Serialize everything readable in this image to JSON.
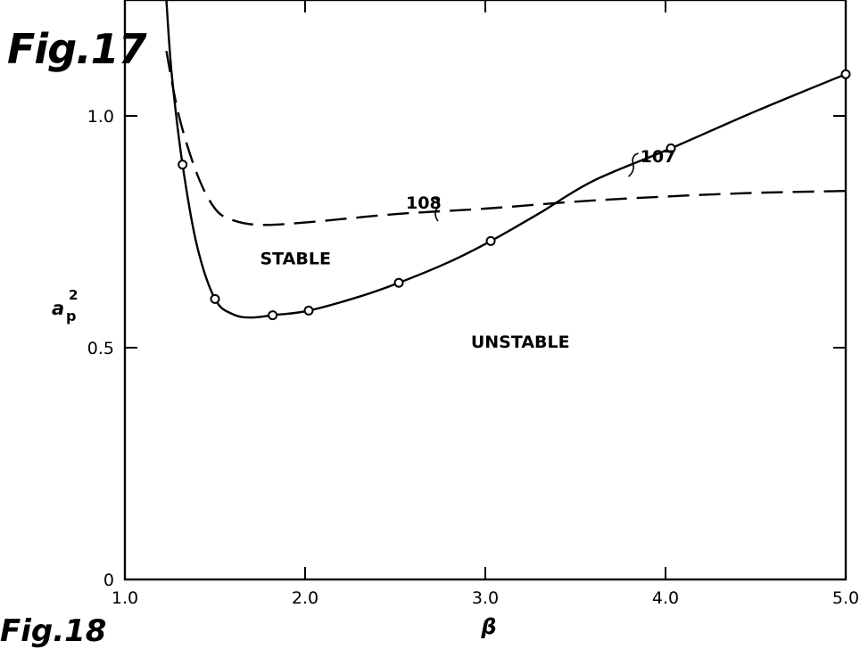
{
  "figure": {
    "title": "Fig.17",
    "next_title": "Fig.18"
  },
  "chart_data": {
    "type": "line",
    "xlabel": "β",
    "ylabel_main": "a",
    "ylabel_sup": "2",
    "ylabel_sub": "p",
    "xlim": [
      1.0,
      5.0
    ],
    "ylim": [
      0,
      1.25
    ],
    "x_ticks": [
      {
        "value": 1.0,
        "label": "1.0"
      },
      {
        "value": 2.0,
        "label": "2.0"
      },
      {
        "value": 3.0,
        "label": "3.0"
      },
      {
        "value": 4.0,
        "label": "4.0"
      },
      {
        "value": 5.0,
        "label": "5.0"
      }
    ],
    "y_ticks": [
      {
        "value": 0,
        "label": "0"
      },
      {
        "value": 0.5,
        "label": "0.5"
      },
      {
        "value": 1.0,
        "label": "1.0"
      }
    ],
    "grid": false,
    "series": [
      {
        "name": "107",
        "style": "solid",
        "color": "#000000",
        "markers": true,
        "points": [
          {
            "x": 1.32,
            "y": 0.895
          },
          {
            "x": 1.5,
            "y": 0.605
          },
          {
            "x": 1.82,
            "y": 0.57
          },
          {
            "x": 2.02,
            "y": 0.58
          },
          {
            "x": 2.52,
            "y": 0.64
          },
          {
            "x": 3.03,
            "y": 0.73
          },
          {
            "x": 4.03,
            "y": 0.93
          },
          {
            "x": 5.0,
            "y": 1.09
          }
        ],
        "curve": [
          [
            1.23,
            1.25
          ],
          [
            1.26,
            1.09
          ],
          [
            1.32,
            0.895
          ],
          [
            1.4,
            0.72
          ],
          [
            1.5,
            0.605
          ],
          [
            1.6,
            0.572
          ],
          [
            1.7,
            0.565
          ],
          [
            1.82,
            0.57
          ],
          [
            2.02,
            0.58
          ],
          [
            2.3,
            0.61
          ],
          [
            2.52,
            0.64
          ],
          [
            2.8,
            0.685
          ],
          [
            3.03,
            0.73
          ],
          [
            3.3,
            0.79
          ],
          [
            3.6,
            0.86
          ],
          [
            4.03,
            0.93
          ],
          [
            4.5,
            1.01
          ],
          [
            5.0,
            1.09
          ]
        ]
      },
      {
        "name": "108",
        "style": "dashed",
        "color": "#000000",
        "markers": false,
        "curve": [
          [
            1.23,
            1.14
          ],
          [
            1.3,
            1.0
          ],
          [
            1.4,
            0.875
          ],
          [
            1.5,
            0.8
          ],
          [
            1.6,
            0.775
          ],
          [
            1.75,
            0.765
          ],
          [
            2.0,
            0.77
          ],
          [
            2.5,
            0.788
          ],
          [
            3.0,
            0.8
          ],
          [
            3.5,
            0.815
          ],
          [
            4.0,
            0.826
          ],
          [
            4.5,
            0.834
          ],
          [
            5.0,
            0.838
          ]
        ]
      }
    ],
    "curve_labels": [
      {
        "text": "107",
        "series": "107",
        "x": 3.8,
        "y": 0.9
      },
      {
        "text": "108",
        "series": "108",
        "x": 2.5,
        "y": 0.8
      }
    ],
    "annotations": [
      {
        "text": "STABLE",
        "x": 1.75,
        "y": 0.68
      },
      {
        "text": "UNSTABLE",
        "x": 2.92,
        "y": 0.5
      }
    ]
  }
}
